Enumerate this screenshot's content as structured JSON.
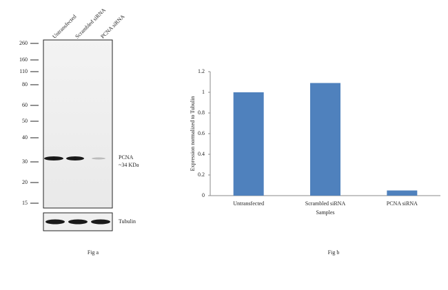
{
  "blot": {
    "lanes": [
      "Untransfected",
      "Scrambled siRNA",
      "PCNA siRNA"
    ],
    "markers": [
      260,
      160,
      110,
      80,
      60,
      50,
      40,
      30,
      20,
      15
    ],
    "band_label": "PCNA",
    "band_size": "~34 KDa",
    "loading_label": "Tubulin",
    "caption": "Fig a"
  },
  "chart_data": {
    "type": "bar",
    "caption": "Fig b",
    "categories": [
      "Untransfected",
      "Scrambled siRNA",
      "PCNA siRNA"
    ],
    "values": [
      1,
      1.09,
      0.05
    ],
    "color": "#4f81bd",
    "xlabel": "Samples",
    "ylabel": "Expression normalized to Tubulin",
    "ylim": [
      0,
      1.2
    ],
    "yticks": [
      0,
      0.2,
      0.4,
      0.6,
      0.8,
      1,
      1.2
    ]
  }
}
